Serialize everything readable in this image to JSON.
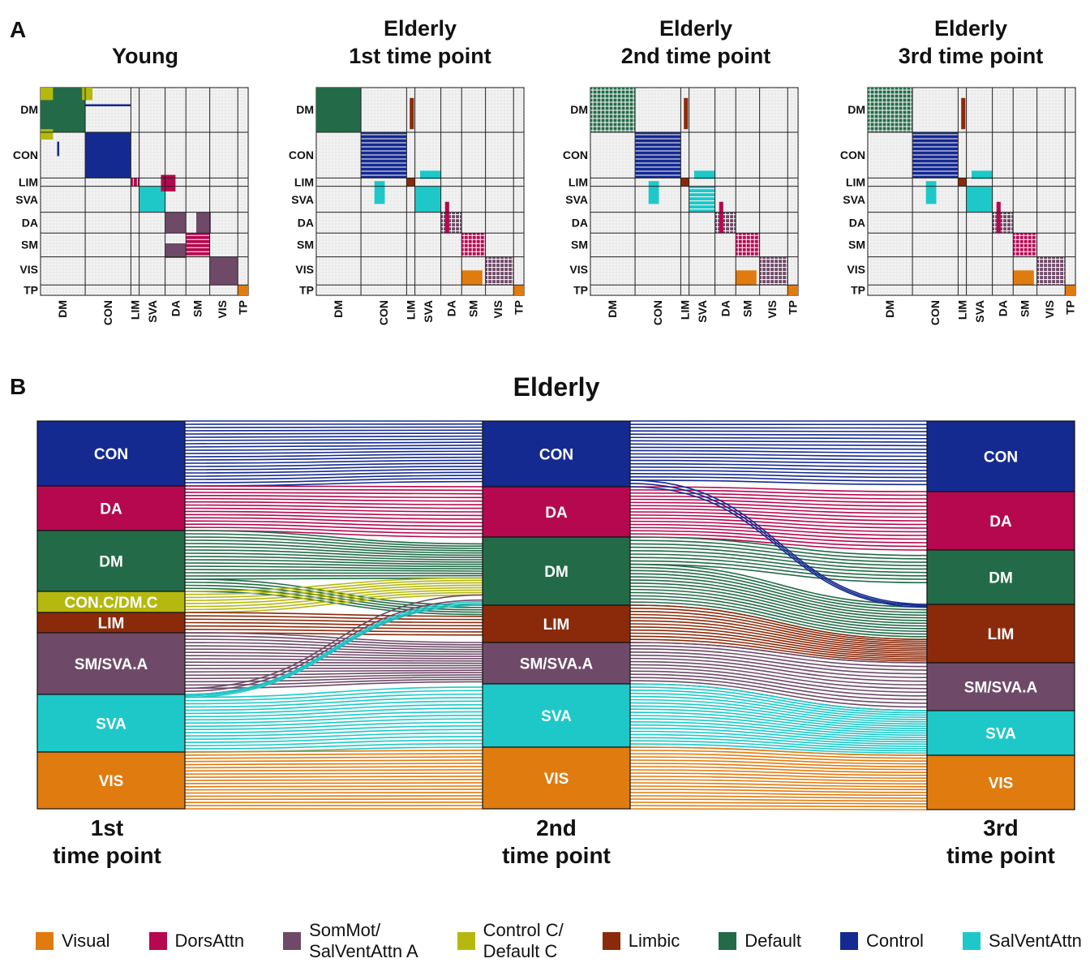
{
  "panel_a": {
    "letter": "A",
    "matrices": [
      {
        "title1": "Young",
        "title2": ""
      },
      {
        "title1": "Elderly",
        "title2": "1st time point"
      },
      {
        "title1": "Elderly",
        "title2": "2nd time point"
      },
      {
        "title1": "Elderly",
        "title2": "3rd time point"
      }
    ],
    "row_labels": [
      "DM",
      "CON",
      "LIM",
      "SVA",
      "DA",
      "SM",
      "VIS",
      "TP"
    ],
    "col_labels": [
      "DM",
      "CON",
      "LIM",
      "SVA",
      "DA",
      "SM",
      "VIS",
      "TP"
    ]
  },
  "panel_b": {
    "letter": "B",
    "title": "Elderly",
    "columns": [
      {
        "label1": "1st",
        "label2": "time point"
      },
      {
        "label1": "2nd",
        "label2": "time point"
      },
      {
        "label1": "3rd",
        "label2": "time point"
      }
    ],
    "stacks": [
      [
        "CON",
        "DA",
        "DM",
        "CON.C/DM.C",
        "LIM",
        "SM/SVA.A",
        "SVA",
        "VIS"
      ],
      [
        "CON",
        "DA",
        "DM",
        "LIM",
        "SM/SVA.A",
        "SVA",
        "VIS"
      ],
      [
        "CON",
        "DA",
        "DM",
        "LIM",
        "SM/SVA.A",
        "SVA",
        "VIS"
      ]
    ]
  },
  "legend": [
    {
      "label": "Visual",
      "color": "#e07b10"
    },
    {
      "label": "DorsAttn",
      "color": "#b5084f"
    },
    {
      "label": "SomMot/\nSalVentAttn A",
      "color": "#6e4a68"
    },
    {
      "label": "Control C/\nDefault C",
      "color": "#b5b80f"
    },
    {
      "label": "Limbic",
      "color": "#8b2a0a"
    },
    {
      "label": "Default",
      "color": "#236b48"
    },
    {
      "label": "Control",
      "color": "#152a90"
    },
    {
      "label": "SalVentAttn",
      "color": "#1ec8c8"
    }
  ],
  "colors": {
    "visual": "#e07b10",
    "dorsattn": "#b5084f",
    "sommot": "#6e4a68",
    "controlc": "#b5b80f",
    "limbic": "#8b2a0a",
    "default": "#236b48",
    "control": "#152a90",
    "salvent": "#1ec8c8"
  }
}
